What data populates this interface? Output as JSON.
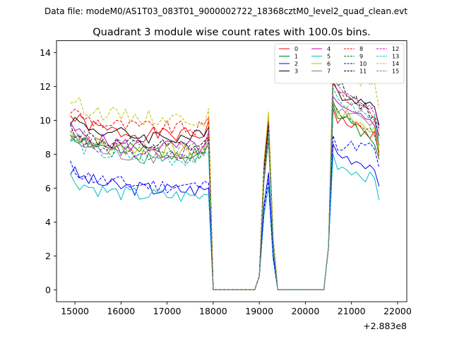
{
  "chart_data": {
    "type": "line",
    "suptitle": "Data file: modeM0/AS1T03_083T01_9000002722_18368cztM0_level2_quad_clean.evt",
    "title": "Quadrant 3 module wise count rates with 100.0s bins.",
    "xlabel": "",
    "ylabel": "",
    "x_offset_label": "+2.883e8",
    "xlim": [
      14600,
      22200
    ],
    "ylim": [
      -0.7,
      14.7
    ],
    "x_ticks": [
      15000,
      16000,
      17000,
      18000,
      19000,
      20000,
      21000,
      22000
    ],
    "x_tick_labels": [
      "15000",
      "16000",
      "17000",
      "18000",
      "19000",
      "20000",
      "21000",
      "22000"
    ],
    "y_ticks": [
      0,
      2,
      4,
      6,
      8,
      10,
      12,
      14
    ],
    "y_tick_labels": [
      "0",
      "2",
      "4",
      "6",
      "8",
      "10",
      "12",
      "14"
    ],
    "legend_position": "top-right",
    "grid": false,
    "x_start": 14900,
    "x_step": 100,
    "series": [
      {
        "name": "0",
        "color": "#ff0000",
        "dashed": false,
        "level": 9.3,
        "pre_peak": 10.0,
        "peak": 9.6,
        "post_peak": 10.7,
        "end": 7.9
      },
      {
        "name": "1",
        "color": "#008000",
        "dashed": false,
        "level": 8.3,
        "pre_peak": 8.8,
        "peak": 9.2,
        "post_peak": 10.9,
        "end": 7.7
      },
      {
        "name": "2",
        "color": "#0000ff",
        "dashed": false,
        "level": 6.1,
        "pre_peak": 6.0,
        "peak": 6.9,
        "post_peak": 8.6,
        "end": 6.1
      },
      {
        "name": "3",
        "color": "#000000",
        "dashed": false,
        "level": 9.2,
        "pre_peak": 9.6,
        "peak": 9.9,
        "post_peak": 12.2,
        "end": 9.7
      },
      {
        "name": "4",
        "color": "#bf00bf",
        "dashed": false,
        "level": 8.6,
        "pre_peak": 9.3,
        "peak": 9.4,
        "post_peak": 11.4,
        "end": 8.5
      },
      {
        "name": "5",
        "color": "#00bfbf",
        "dashed": false,
        "level": 5.7,
        "pre_peak": 5.6,
        "peak": 6.1,
        "post_peak": 8.0,
        "end": 5.3
      },
      {
        "name": "6",
        "color": "#bfbf00",
        "dashed": false,
        "level": 8.4,
        "pre_peak": 9.0,
        "peak": 10.4,
        "post_peak": 11.2,
        "end": 8.2
      },
      {
        "name": "7",
        "color": "#808080",
        "dashed": false,
        "level": 8.0,
        "pre_peak": 8.8,
        "peak": 8.8,
        "post_peak": 11.1,
        "end": 8.5
      },
      {
        "name": "8",
        "color": "#ff0000",
        "dashed": true,
        "level": 9.7,
        "pre_peak": 10.2,
        "peak": 10.0,
        "post_peak": 12.3,
        "end": 9.1
      },
      {
        "name": "9",
        "color": "#008000",
        "dashed": true,
        "level": 8.2,
        "pre_peak": 8.5,
        "peak": 9.0,
        "post_peak": 11.0,
        "end": 8.1
      },
      {
        "name": "10",
        "color": "#0000ff",
        "dashed": true,
        "level": 6.3,
        "pre_peak": 6.3,
        "peak": 6.5,
        "post_peak": 9.1,
        "end": 7.2
      },
      {
        "name": "11",
        "color": "#000000",
        "dashed": true,
        "level": 8.6,
        "pre_peak": 9.0,
        "peak": 9.8,
        "post_peak": 13.0,
        "end": 9.0
      },
      {
        "name": "12",
        "color": "#bf00bf",
        "dashed": true,
        "level": 8.3,
        "pre_peak": 8.9,
        "peak": 9.5,
        "post_peak": 12.4,
        "end": 9.5
      },
      {
        "name": "13",
        "color": "#00bfbf",
        "dashed": true,
        "level": 7.9,
        "pre_peak": 8.0,
        "peak": 9.3,
        "post_peak": 11.9,
        "end": 8.8
      },
      {
        "name": "14",
        "color": "#bfbf00",
        "dashed": true,
        "level": 10.3,
        "pre_peak": 10.7,
        "peak": 10.5,
        "post_peak": 13.8,
        "end": 10.7
      },
      {
        "name": "15",
        "color": "#808080",
        "dashed": true,
        "level": 8.5,
        "pre_peak": 8.8,
        "peak": 9.1,
        "post_peak": 12.4,
        "end": 9.4
      }
    ]
  }
}
